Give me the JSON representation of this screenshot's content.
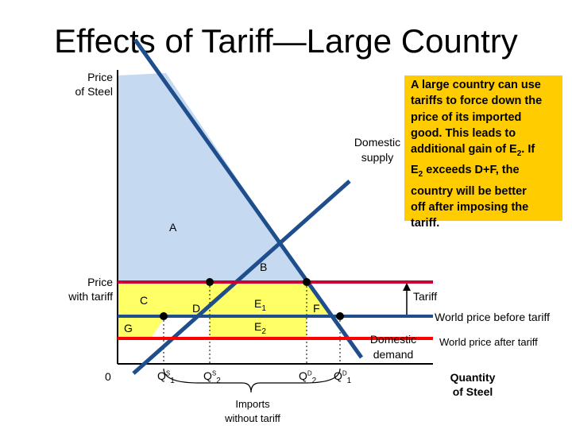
{
  "title": "Effects of Tariff—Large Country",
  "callout": {
    "line1": "A large country can use",
    "line2": "tariffs to force down the",
    "line3": "price of its imported",
    "line4": "good. This leads to",
    "line5_a": "additional gain of E",
    "line5_sub": "2",
    "line5_b": ". If",
    "line6_a": "E",
    "line6_sub": "2",
    "line6_b": " exceeds D+F, the",
    "line7": "country will be better",
    "line8": "off after imposing the",
    "line9": "tariff."
  },
  "axis": {
    "y_label_line1": "Price",
    "y_label_line2": "of Steel",
    "x_label_line1": "Quantity",
    "x_label_line2": "of Steel",
    "origin": "0",
    "price_with_tariff_line1": "Price",
    "price_with_tariff_line2": "with tariff"
  },
  "curves": {
    "supply_line1": "Domestic",
    "supply_line2": "supply",
    "demand_line1": "Domestic",
    "demand_line2": "demand"
  },
  "lines": {
    "tariff": "Tariff",
    "world_before": "World price before tariff",
    "world_after": "World price after tariff"
  },
  "areas": {
    "A": "A",
    "B": "B",
    "C": "C",
    "D": "D",
    "E1": "E",
    "E1_sub": "1",
    "E2": "E",
    "E2_sub": "2",
    "F": "F",
    "G": "G"
  },
  "quantities": {
    "q1s": "Q",
    "q1s_sup": "S",
    "q1s_sub": "1",
    "q2s": "Q",
    "q2s_sup": "S",
    "q2s_sub": "2",
    "q2d": "Q",
    "q2d_sup": "D",
    "q2d_sub": "2",
    "q1d": "Q",
    "q1d_sup": "D",
    "q1d_sub": "1"
  },
  "imports": {
    "line1": "Imports",
    "line2": "without tariff"
  },
  "colors": {
    "area_a": "#c5d9f1",
    "area_yellow": "#ffff66",
    "curve": "#1f4e8c",
    "tariff_line": "#cc0033",
    "world_after_line": "#ff0000",
    "callout_bg": "#ffcc00"
  }
}
